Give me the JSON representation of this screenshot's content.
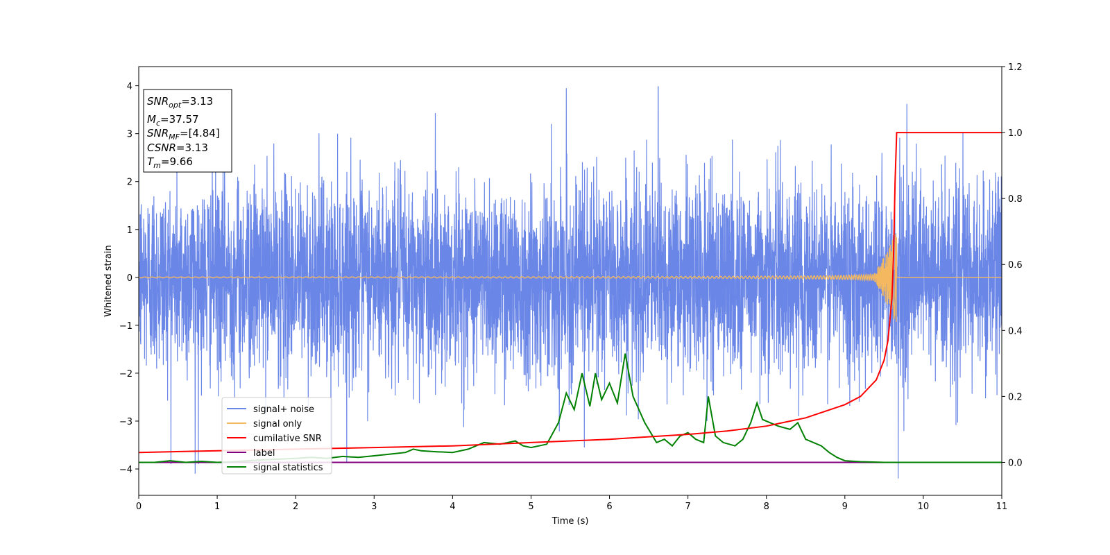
{
  "chart_data": {
    "type": "line",
    "title": "",
    "xlabel": "Time (s)",
    "ylabel": "Whitened strain",
    "y2label": "",
    "xlim": [
      0,
      11
    ],
    "ylim": [
      -4.55,
      4.4
    ],
    "y2lim": [
      -0.1,
      1.2
    ],
    "xticks": [
      0,
      1,
      2,
      3,
      4,
      5,
      6,
      7,
      8,
      9,
      10,
      11
    ],
    "yticks": [
      -4,
      -3,
      -2,
      -1,
      0,
      1,
      2,
      3,
      4
    ],
    "y2ticks": [
      0.0,
      0.2,
      0.4,
      0.6,
      0.8,
      1.0,
      1.2
    ],
    "grid": false,
    "legend_position": "lower-left",
    "annotation": {
      "snr_opt": {
        "base": "SNR",
        "sub": "opt",
        "value": "=3.13"
      },
      "mc": {
        "base": "M",
        "sub": "c",
        "value": "=37.57"
      },
      "snr_mf": {
        "base": "SNR",
        "sub": "MF",
        "value": "=[4.84]"
      },
      "csnr": {
        "base": "CSNR",
        "sub": "",
        "value": "=3.13"
      },
      "tm": {
        "base": "T",
        "sub": "m",
        "value": "=9.66"
      }
    },
    "series": [
      {
        "name": "signal+ noise",
        "axis": "left",
        "color": "#6a86e6",
        "kind": "gaussian-noise",
        "sigma": 1.0,
        "extremes": [
          [
            5.45,
            3.95
          ],
          [
            6.62,
            3.98
          ],
          [
            0.72,
            -4.1
          ],
          [
            9.68,
            -4.2
          ],
          [
            5.68,
            -3.55
          ],
          [
            2.45,
            -3.6
          ]
        ]
      },
      {
        "name": "signal only",
        "axis": "left",
        "color": "#f4b860",
        "kind": "chirp",
        "t_merge": 9.66,
        "peak_amplitude": 0.85
      },
      {
        "name": "cumilative SNR",
        "axis": "right",
        "color": "#ff0000",
        "x": [
          0,
          1,
          2,
          3,
          4,
          5,
          6,
          7,
          7.5,
          8,
          8.5,
          9,
          9.2,
          9.4,
          9.5,
          9.55,
          9.6,
          9.62,
          9.64,
          9.66,
          11
        ],
        "y": [
          0.03,
          0.035,
          0.04,
          0.045,
          0.05,
          0.06,
          0.07,
          0.085,
          0.095,
          0.11,
          0.135,
          0.175,
          0.2,
          0.25,
          0.31,
          0.37,
          0.5,
          0.62,
          0.85,
          1.0,
          1.0
        ]
      },
      {
        "name": "label",
        "axis": "right",
        "color": "#800080",
        "x": [
          0,
          11
        ],
        "y": [
          0,
          0
        ]
      },
      {
        "name": "signal statistics",
        "axis": "right",
        "color": "#008000",
        "x": [
          0,
          0.2,
          0.4,
          0.6,
          0.8,
          1.0,
          1.2,
          1.4,
          1.6,
          1.8,
          2.0,
          2.2,
          2.4,
          2.6,
          2.8,
          3.0,
          3.2,
          3.4,
          3.5,
          3.6,
          3.8,
          4.0,
          4.2,
          4.4,
          4.6,
          4.8,
          4.9,
          5.0,
          5.2,
          5.35,
          5.45,
          5.55,
          5.65,
          5.75,
          5.82,
          5.9,
          6.0,
          6.1,
          6.2,
          6.3,
          6.45,
          6.6,
          6.7,
          6.8,
          6.9,
          7.0,
          7.1,
          7.2,
          7.26,
          7.35,
          7.45,
          7.6,
          7.7,
          7.8,
          7.88,
          7.95,
          8.05,
          8.15,
          8.3,
          8.4,
          8.5,
          8.6,
          8.7,
          8.8,
          8.9,
          9.0,
          9.2,
          9.5,
          10,
          11
        ],
        "y": [
          0.0,
          0.0,
          0.005,
          0.0,
          0.003,
          0.0,
          0.002,
          0.005,
          0.008,
          0.01,
          0.012,
          0.015,
          0.012,
          0.018,
          0.015,
          0.02,
          0.025,
          0.03,
          0.04,
          0.035,
          0.032,
          0.03,
          0.04,
          0.06,
          0.055,
          0.065,
          0.05,
          0.045,
          0.055,
          0.12,
          0.21,
          0.16,
          0.27,
          0.17,
          0.27,
          0.19,
          0.24,
          0.18,
          0.33,
          0.2,
          0.12,
          0.06,
          0.07,
          0.05,
          0.08,
          0.09,
          0.07,
          0.06,
          0.2,
          0.08,
          0.06,
          0.05,
          0.07,
          0.12,
          0.18,
          0.13,
          0.12,
          0.11,
          0.1,
          0.12,
          0.07,
          0.06,
          0.05,
          0.03,
          0.015,
          0.005,
          0.002,
          0.0,
          0.0,
          0.0
        ]
      }
    ]
  }
}
